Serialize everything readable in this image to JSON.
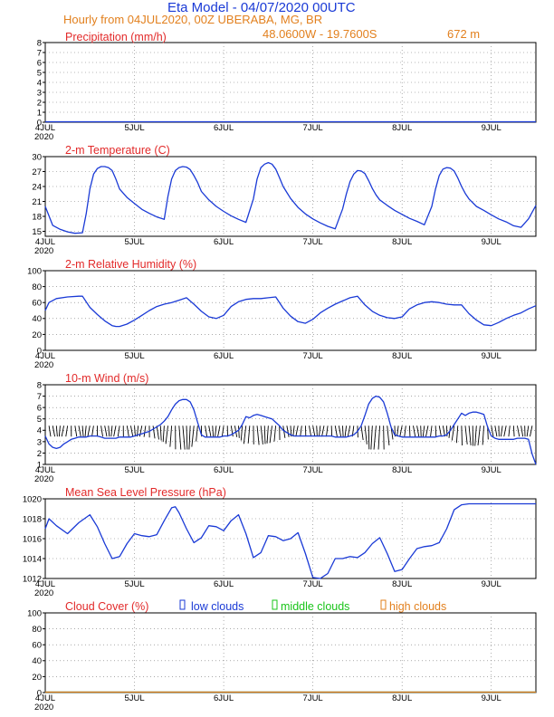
{
  "header": {
    "title": "Eta Model - 04/07/2020 00UTC",
    "subtitle": "Hourly from 04JUL2020, 00Z  UBERABA, MG, BR",
    "coords": "48.0600W - 19.7600S",
    "elevation": "672  m"
  },
  "colors": {
    "title_blue": "#1a3ad6",
    "orange": "#e2801e",
    "panel_title_red": "#e22a2a",
    "series_blue": "#1a3ad6",
    "green": "#19c419",
    "wind_barb": "#000000"
  },
  "xaxis": {
    "first_day": "4JUL",
    "year": "2020",
    "day_labels": [
      "4JUL",
      "5JUL",
      "6JUL",
      "7JUL",
      "8JUL",
      "9JUL"
    ],
    "day_hours": [
      0,
      24,
      48,
      72,
      96,
      120
    ],
    "max_hour": 132
  },
  "chart_data": [
    {
      "id": "precip",
      "type": "line",
      "title": "Precipitation (mm/h)",
      "ylim": [
        0,
        8
      ],
      "yticks": [
        0,
        1,
        2,
        3,
        4,
        5,
        6,
        7,
        8
      ],
      "x": [
        0,
        132
      ],
      "series": [
        {
          "name": "precipitation",
          "values": [
            0,
            0
          ]
        }
      ]
    },
    {
      "id": "temp",
      "type": "line",
      "title": "2-m Temperature (C)",
      "ylim": [
        14,
        30
      ],
      "yticks": [
        15,
        18,
        21,
        24,
        27,
        30
      ],
      "x": [
        0,
        2,
        4,
        6,
        8,
        10,
        11,
        12,
        13,
        14,
        15,
        16,
        17,
        18,
        19,
        20,
        22,
        24,
        26,
        28,
        30,
        32,
        33,
        34,
        35,
        36,
        37,
        38,
        39,
        40,
        41,
        42,
        44,
        46,
        48,
        50,
        52,
        54,
        56,
        57,
        58,
        59,
        60,
        61,
        62,
        63,
        64,
        65,
        66,
        68,
        70,
        72,
        74,
        76,
        78,
        80,
        81,
        82,
        83,
        84,
        85,
        86,
        87,
        88,
        89,
        90,
        92,
        94,
        96,
        98,
        100,
        102,
        104,
        105,
        106,
        107,
        108,
        109,
        110,
        111,
        112,
        113,
        114,
        116,
        118,
        120,
        122,
        124,
        126,
        128,
        130,
        132
      ],
      "series": [
        {
          "name": "temperature",
          "values": [
            20,
            16.2,
            15.4,
            14.9,
            14.6,
            14.7,
            18.5,
            23.5,
            26.5,
            27.6,
            28,
            28,
            27.8,
            27.2,
            25.5,
            23.5,
            21.8,
            20.6,
            19.4,
            18.6,
            17.9,
            17.4,
            22,
            25.5,
            27.2,
            27.8,
            28,
            27.9,
            27.4,
            26.2,
            24.8,
            23,
            21.3,
            20,
            19,
            18.1,
            17.4,
            16.8,
            21.5,
            25.5,
            27.8,
            28.5,
            28.8,
            28.5,
            27.5,
            25.8,
            24,
            22.8,
            21.6,
            19.8,
            18.5,
            17.5,
            16.7,
            16,
            15.5,
            19.5,
            22.5,
            25,
            26.5,
            27.2,
            27.1,
            26.6,
            25.2,
            23.6,
            22.3,
            21.3,
            20.2,
            19.2,
            18.4,
            17.6,
            17,
            16.3,
            20,
            23.5,
            26.2,
            27.5,
            27.8,
            27.7,
            27.1,
            25.7,
            24,
            22.6,
            21.5,
            20,
            19.2,
            18.3,
            17.5,
            16.9,
            16.1,
            15.8,
            17.5,
            20.2
          ]
        }
      ]
    },
    {
      "id": "rh",
      "type": "line",
      "title": "2-m Relative Humidity (%)",
      "ylim": [
        0,
        100
      ],
      "yticks": [
        0,
        20,
        40,
        60,
        80,
        100
      ],
      "x": [
        0,
        1,
        3,
        6,
        9,
        10,
        12,
        14,
        16,
        18,
        19,
        20,
        22,
        24,
        26,
        28,
        30,
        32,
        34,
        36,
        38,
        40,
        42,
        44,
        46,
        48,
        50,
        52,
        54,
        56,
        58,
        60,
        62,
        64,
        66,
        68,
        70,
        72,
        74,
        76,
        78,
        80,
        82,
        84,
        86,
        88,
        90,
        92,
        94,
        96,
        98,
        100,
        102,
        104,
        106,
        108,
        110,
        112,
        114,
        116,
        118,
        120,
        122,
        124,
        126,
        128,
        130,
        132
      ],
      "series": [
        {
          "name": "relative humidity",
          "values": [
            50,
            60,
            65,
            67,
            68,
            68,
            54,
            45,
            37,
            31,
            30,
            30,
            33,
            38,
            44,
            50,
            55,
            58,
            60,
            63,
            66,
            58,
            49,
            42,
            40,
            44,
            55,
            61,
            64,
            65,
            65,
            66,
            67,
            53,
            43,
            36,
            34,
            39,
            47,
            53,
            58,
            62,
            66,
            68,
            57,
            49,
            44,
            41,
            40,
            42,
            52,
            57,
            60,
            61,
            60,
            58,
            57,
            57,
            46,
            38,
            32,
            31,
            35,
            40,
            44,
            47,
            52,
            56
          ]
        }
      ]
    },
    {
      "id": "wind",
      "type": "line",
      "title": "10-m Wind (m/s)",
      "ylim": [
        1,
        8
      ],
      "yticks": [
        1,
        2,
        3,
        4,
        5,
        6,
        7,
        8
      ],
      "x": [
        0,
        1,
        2,
        3,
        4,
        5,
        6,
        7,
        8,
        9,
        10,
        11,
        12,
        13,
        14,
        15,
        16,
        17,
        18,
        19,
        20,
        21,
        22,
        23,
        24,
        25,
        26,
        27,
        28,
        29,
        30,
        31,
        32,
        33,
        34,
        35,
        36,
        37,
        38,
        39,
        40,
        41,
        42,
        43,
        44,
        45,
        46,
        47,
        48,
        49,
        50,
        51,
        52,
        53,
        54,
        55,
        56,
        57,
        58,
        59,
        60,
        61,
        62,
        63,
        64,
        65,
        66,
        67,
        68,
        69,
        70,
        71,
        72,
        73,
        74,
        75,
        76,
        77,
        78,
        79,
        80,
        81,
        82,
        83,
        84,
        85,
        86,
        87,
        88,
        89,
        90,
        91,
        92,
        93,
        94,
        95,
        96,
        97,
        98,
        99,
        100,
        101,
        102,
        103,
        104,
        105,
        106,
        107,
        108,
        109,
        110,
        111,
        112,
        113,
        114,
        115,
        116,
        117,
        118,
        119,
        120,
        121,
        122,
        123,
        124,
        125,
        126,
        127,
        128,
        129,
        130,
        131,
        132
      ],
      "series": [
        {
          "name": "wind speed",
          "values": [
            3.5,
            2.8,
            2.5,
            2.4,
            2.5,
            2.8,
            3,
            3.2,
            3.3,
            3.4,
            3.4,
            3.4,
            3.5,
            3.5,
            3.5,
            3.4,
            3.3,
            3.3,
            3.3,
            3.3,
            3.4,
            3.4,
            3.4,
            3.4,
            3.5,
            3.6,
            3.7,
            3.8,
            3.9,
            4.1,
            4.3,
            4.5,
            4.8,
            5.2,
            5.8,
            6.3,
            6.6,
            6.7,
            6.7,
            6.5,
            5.8,
            4.7,
            3.6,
            3.4,
            3.4,
            3.4,
            3.4,
            3.4,
            3.5,
            3.5,
            3.6,
            3.8,
            4,
            4.5,
            5.2,
            5.1,
            5.3,
            5.4,
            5.3,
            5.2,
            5.1,
            5,
            4.7,
            4.4,
            4,
            3.8,
            3.6,
            3.5,
            3.5,
            3.5,
            3.5,
            3.5,
            3.5,
            3.5,
            3.5,
            3.5,
            3.5,
            3.5,
            3.4,
            3.4,
            3.4,
            3.4,
            3.5,
            3.6,
            3.9,
            4.4,
            5.3,
            6.3,
            6.8,
            7,
            6.9,
            6.5,
            5.5,
            4.3,
            3.6,
            3.5,
            3.4,
            3.4,
            3.4,
            3.4,
            3.4,
            3.4,
            3.4,
            3.4,
            3.4,
            3.4,
            3.5,
            3.5,
            3.6,
            4,
            4.5,
            5,
            5.5,
            5.3,
            5.5,
            5.6,
            5.6,
            5.5,
            5.4,
            4.3,
            3.5,
            3.3,
            3.2,
            3.2,
            3.2,
            3.2,
            3.2,
            3.3,
            3.3,
            3.3,
            3.2,
            1.9,
            1
          ]
        }
      ]
    },
    {
      "id": "mslp",
      "type": "line",
      "title": "Mean Sea Level Pressure (hPa)",
      "ylim": [
        1012,
        1020
      ],
      "yticks": [
        1012,
        1014,
        1016,
        1018,
        1020
      ],
      "x": [
        0,
        1,
        3,
        6,
        9,
        12,
        14,
        16,
        18,
        20,
        22,
        24,
        26,
        28,
        30,
        32,
        34,
        35,
        36,
        38,
        40,
        42,
        44,
        46,
        48,
        50,
        52,
        54,
        56,
        58,
        60,
        62,
        64,
        66,
        68,
        70,
        72,
        74,
        76,
        78,
        80,
        82,
        84,
        86,
        88,
        90,
        92,
        94,
        96,
        98,
        100,
        102,
        104,
        106,
        108,
        110,
        112,
        114,
        116,
        118,
        120,
        122,
        124,
        126,
        128,
        130,
        132
      ],
      "series": [
        {
          "name": "pressure",
          "values": [
            1017,
            1018,
            1017.3,
            1016.5,
            1017.6,
            1018.4,
            1017.2,
            1015.5,
            1014,
            1014.2,
            1015.5,
            1016.5,
            1016.3,
            1016.2,
            1016.4,
            1017.8,
            1019.1,
            1019.2,
            1018.6,
            1017,
            1015.6,
            1016.1,
            1017.3,
            1017.2,
            1016.8,
            1017.8,
            1018.4,
            1016.5,
            1014.1,
            1014.6,
            1016.3,
            1016.2,
            1015.8,
            1016,
            1016.6,
            1014.5,
            1012.1,
            1011.9,
            1012.5,
            1014,
            1014,
            1014.2,
            1014.1,
            1014.6,
            1015.5,
            1016.1,
            1014.5,
            1012.7,
            1012.9,
            1014,
            1015,
            1015.2,
            1015.3,
            1015.6,
            1017,
            1018.9,
            1019.4,
            1019.5,
            1019.5,
            1019.5,
            1019.5,
            1019.5,
            1019.5,
            1019.5,
            1019.5,
            1019.5,
            1019.5
          ]
        }
      ]
    },
    {
      "id": "cloud",
      "type": "line",
      "title": "Cloud Cover (%)",
      "ylim": [
        0,
        100
      ],
      "yticks": [
        0,
        20,
        40,
        60,
        80,
        100
      ],
      "x": [
        0,
        132
      ],
      "legend": [
        "low clouds",
        "middle clouds",
        "high clouds"
      ],
      "series": [
        {
          "name": "low clouds",
          "values": [
            0,
            0
          ]
        },
        {
          "name": "middle clouds",
          "values": [
            0,
            0
          ]
        },
        {
          "name": "high clouds",
          "values": [
            0,
            0
          ]
        }
      ]
    }
  ]
}
